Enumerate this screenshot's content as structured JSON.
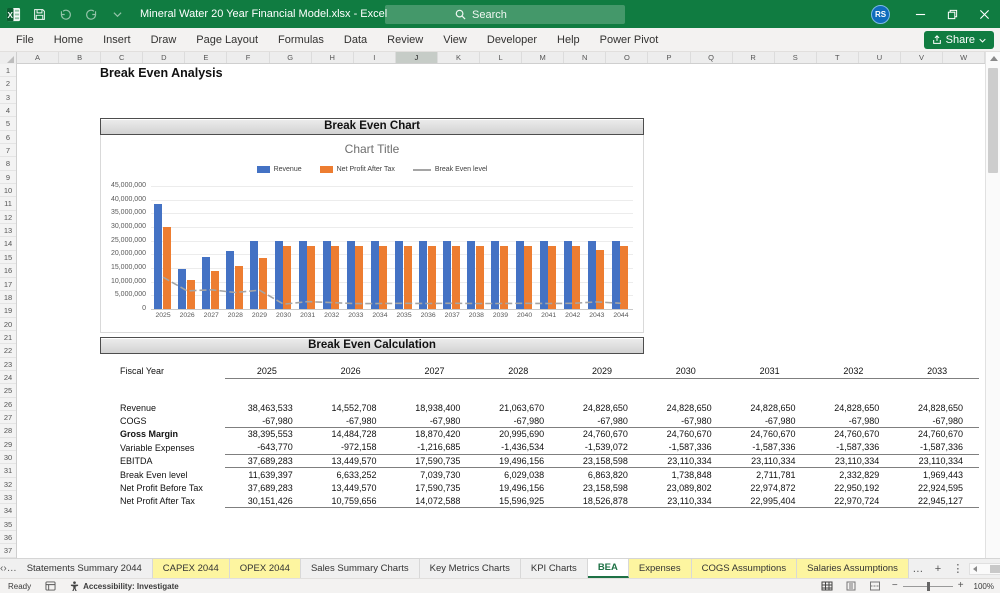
{
  "title_bar": {
    "title": "Mineral Water 20 Year Financial Model.xlsx  -  Excel",
    "search_placeholder": "Search",
    "avatar_initials": "RS"
  },
  "ribbon": {
    "tabs": [
      "File",
      "Home",
      "Insert",
      "Draw",
      "Page Layout",
      "Formulas",
      "Data",
      "Review",
      "View",
      "Developer",
      "Help",
      "Power Pivot"
    ],
    "share_label": "Share"
  },
  "grid": {
    "columns": [
      "A",
      "B",
      "C",
      "D",
      "E",
      "F",
      "G",
      "H",
      "I",
      "J",
      "K",
      "L",
      "M",
      "N",
      "O",
      "P",
      "Q",
      "R",
      "S",
      "T",
      "U",
      "V",
      "W"
    ],
    "selected_column": "J",
    "row_count": 37
  },
  "sheet": {
    "page_title": "Break Even Analysis",
    "chart_section_title": "Break Even Chart",
    "calc_section_title": "Break Even Calculation"
  },
  "chart_data": {
    "type": "combo",
    "title": "Chart Title",
    "categories": [
      2025,
      2026,
      2027,
      2028,
      2029,
      2030,
      2031,
      2032,
      2033,
      2034,
      2035,
      2036,
      2037,
      2038,
      2039,
      2040,
      2041,
      2042,
      2043,
      2044
    ],
    "series": [
      {
        "name": "Revenue",
        "kind": "bar",
        "color": "#4472C4",
        "values": [
          38463533,
          14552708,
          18938400,
          21063670,
          24828650,
          24828650,
          24828650,
          24828650,
          24828650,
          24828650,
          24828650,
          24828650,
          24828650,
          24828650,
          24828650,
          24828650,
          24828650,
          24828650,
          24828650,
          24828650
        ]
      },
      {
        "name": "Net Profit After Tax",
        "kind": "bar",
        "color": "#ED7D31",
        "values": [
          30151426,
          10759656,
          14072588,
          15596925,
          18526878,
          23110334,
          22995404,
          22970724,
          22945127,
          22945127,
          22945127,
          22945127,
          22945127,
          22945127,
          22945127,
          22945127,
          22945127,
          22945127,
          21500000,
          22945127
        ]
      },
      {
        "name": "Break Even level",
        "kind": "line",
        "color": "#A5A5A5",
        "values": [
          11639397,
          6633252,
          7039730,
          6029038,
          6863820,
          1738848,
          2711781,
          2332829,
          1969443,
          2000000,
          2100000,
          2000000,
          2100000,
          2000000,
          2000000,
          2100000,
          2000000,
          2100000,
          2600000,
          2100000
        ]
      }
    ],
    "ylim": [
      0,
      45000000
    ],
    "ytick_step": 5000000,
    "grid": true,
    "legend_position": "top",
    "xlabel": "",
    "ylabel": ""
  },
  "calc_table": {
    "fiscal_year_label": "Fiscal Year",
    "years": [
      "2025",
      "2026",
      "2027",
      "2028",
      "2029",
      "2030",
      "2031",
      "2032",
      "2033"
    ],
    "rows": [
      {
        "label": "Revenue",
        "bold": false,
        "rule_below": false,
        "values": [
          "38,463,533",
          "14,552,708",
          "18,938,400",
          "21,063,670",
          "24,828,650",
          "24,828,650",
          "24,828,650",
          "24,828,650",
          "24,828,650"
        ]
      },
      {
        "label": "COGS",
        "bold": false,
        "rule_below": true,
        "values": [
          "-67,980",
          "-67,980",
          "-67,980",
          "-67,980",
          "-67,980",
          "-67,980",
          "-67,980",
          "-67,980",
          "-67,980"
        ]
      },
      {
        "label": "Gross Margin",
        "bold": true,
        "rule_below": false,
        "values": [
          "38,395,553",
          "14,484,728",
          "18,870,420",
          "20,995,690",
          "24,760,670",
          "24,760,670",
          "24,760,670",
          "24,760,670",
          "24,760,670"
        ]
      },
      {
        "label": "Variable Expenses",
        "bold": false,
        "rule_below": true,
        "values": [
          "-643,770",
          "-972,158",
          "-1,216,685",
          "-1,436,534",
          "-1,539,072",
          "-1,587,336",
          "-1,587,336",
          "-1,587,336",
          "-1,587,336"
        ]
      },
      {
        "label": "EBITDA",
        "bold": false,
        "rule_below": true,
        "values": [
          "37,689,283",
          "13,449,570",
          "17,590,735",
          "19,496,156",
          "23,158,598",
          "23,110,334",
          "23,110,334",
          "23,110,334",
          "23,110,334"
        ]
      },
      {
        "label": "Break Even level",
        "bold": false,
        "rule_below": false,
        "values": [
          "11,639,397",
          "6,633,252",
          "7,039,730",
          "6,029,038",
          "6,863,820",
          "1,738,848",
          "2,711,781",
          "2,332,829",
          "1,969,443"
        ]
      },
      {
        "label": "Net Profit Before Tax",
        "bold": false,
        "rule_below": false,
        "values": [
          "37,689,283",
          "13,449,570",
          "17,590,735",
          "19,496,156",
          "23,158,598",
          "23,089,802",
          "22,974,872",
          "22,950,192",
          "22,924,595"
        ]
      },
      {
        "label": "Net Profit After Tax",
        "bold": false,
        "rule_below": true,
        "values": [
          "30,151,426",
          "10,759,656",
          "14,072,588",
          "15,596,925",
          "18,526,878",
          "23,110,334",
          "22,995,404",
          "22,970,724",
          "22,945,127"
        ]
      }
    ]
  },
  "sheet_tabs": {
    "tabs": [
      {
        "label": "Statements Summary 2044",
        "style": "normal"
      },
      {
        "label": "CAPEX 2044",
        "style": "yellow"
      },
      {
        "label": "OPEX 2044",
        "style": "yellow"
      },
      {
        "label": "Sales Summary Charts",
        "style": "normal"
      },
      {
        "label": "Key Metrics Charts",
        "style": "normal"
      },
      {
        "label": "KPI Charts",
        "style": "normal"
      },
      {
        "label": "BEA",
        "style": "active"
      },
      {
        "label": "Expenses",
        "style": "yellow"
      },
      {
        "label": "COGS Assumptions",
        "style": "yellow"
      },
      {
        "label": "Salaries Assumptions",
        "style": "yellow"
      }
    ]
  },
  "status_bar": {
    "ready_label": "Ready",
    "accessibility_label": "Accessibility: Investigate",
    "zoom_level": "100%"
  }
}
